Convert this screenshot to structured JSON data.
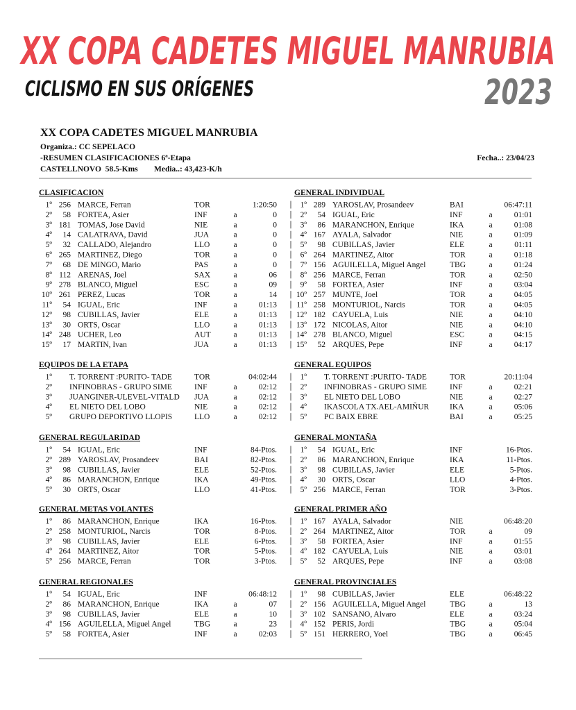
{
  "banner": {
    "title": "XX COPA CADETES MIGUEL MANRUBIA",
    "subtitle": "CICLISMO EN SUS ORÍGENES",
    "year": "2023"
  },
  "header": {
    "title": "XX COPA CADETES MIGUEL MANRUBIA",
    "organizer": "Organiza.: CC SEPELACO",
    "summary": "-RESUMEN CLASIFICACIONES 6ª-Etapa",
    "date": "Fecha..: 23/04/23",
    "stage": "CASTELLNOVO  58.5-Kms",
    "speed": "Media..: 43,423-K/h"
  },
  "sections": [
    {
      "left": {
        "title": "CLASIFICACION",
        "rows": [
          {
            "p": "1º",
            "d": "256",
            "n": "MARCE, Ferran",
            "t": "TOR",
            "v": "1:20:50"
          },
          {
            "p": "2º",
            "d": "58",
            "n": "FORTEA, Asier",
            "t": "INF",
            "a": "a",
            "v": "0"
          },
          {
            "p": "3º",
            "d": "181",
            "n": "TOMAS, Jose David",
            "t": "NIE",
            "a": "a",
            "v": "0"
          },
          {
            "p": "4º",
            "d": "14",
            "n": "CALATRAVA, David",
            "t": "JUA",
            "a": "a",
            "v": "0"
          },
          {
            "p": "5º",
            "d": "32",
            "n": "CALLADO, Alejandro",
            "t": "LLO",
            "a": "a",
            "v": "0"
          },
          {
            "p": "6º",
            "d": "265",
            "n": "MARTINEZ, Diego",
            "t": "TOR",
            "a": "a",
            "v": "0"
          },
          {
            "p": "7º",
            "d": "68",
            "n": "DE MINGO, Mario",
            "t": "PAS",
            "a": "a",
            "v": "0"
          },
          {
            "p": "8º",
            "d": "112",
            "n": "ARENAS, Joel",
            "t": "SAX",
            "a": "a",
            "v": "06"
          },
          {
            "p": "9º",
            "d": "278",
            "n": "BLANCO, Miguel",
            "t": "ESC",
            "a": "a",
            "v": "09"
          },
          {
            "p": "10º",
            "d": "261",
            "n": "PEREZ, Lucas",
            "t": "TOR",
            "a": "a",
            "v": "14"
          },
          {
            "p": "11º",
            "d": "54",
            "n": "IGUAL, Eric",
            "t": "INF",
            "a": "a",
            "v": "01:13"
          },
          {
            "p": "12º",
            "d": "98",
            "n": "CUBILLAS, Javier",
            "t": "ELE",
            "a": "a",
            "v": "01:13"
          },
          {
            "p": "13º",
            "d": "30",
            "n": "ORTS, Oscar",
            "t": "LLO",
            "a": "a",
            "v": "01:13"
          },
          {
            "p": "14º",
            "d": "248",
            "n": "UCHER, Leo",
            "t": "AUT",
            "a": "a",
            "v": "01:13"
          },
          {
            "p": "15º",
            "d": "17",
            "n": "MARTIN, Ivan",
            "t": "JUA",
            "a": "a",
            "v": "01:13"
          }
        ]
      },
      "right": {
        "title": "GENERAL INDIVIDUAL",
        "rows": [
          {
            "p": "1º",
            "d": "289",
            "n": "YAROSLAV, Prosandeev",
            "t": "BAI",
            "v": "06:47:11"
          },
          {
            "p": "2º",
            "d": "54",
            "n": "IGUAL, Eric",
            "t": "INF",
            "a": "a",
            "v": "01:01"
          },
          {
            "p": "3º",
            "d": "86",
            "n": "MARANCHON, Enrique",
            "t": "IKA",
            "a": "a",
            "v": "01:08"
          },
          {
            "p": "4º",
            "d": "167",
            "n": "AYALA, Salvador",
            "t": "NIE",
            "a": "a",
            "v": "01:09"
          },
          {
            "p": "5º",
            "d": "98",
            "n": "CUBILLAS, Javier",
            "t": "ELE",
            "a": "a",
            "v": "01:11"
          },
          {
            "p": "6º",
            "d": "264",
            "n": "MARTINEZ, Aitor",
            "t": "TOR",
            "a": "a",
            "v": "01:18"
          },
          {
            "p": "7º",
            "d": "156",
            "n": "AGUILELLA, Miguel Angel",
            "t": "TBG",
            "a": "a",
            "v": "01:24"
          },
          {
            "p": "8º",
            "d": "256",
            "n": "MARCE, Ferran",
            "t": "TOR",
            "a": "a",
            "v": "02:50"
          },
          {
            "p": "9º",
            "d": "58",
            "n": "FORTEA, Asier",
            "t": "INF",
            "a": "a",
            "v": "03:04"
          },
          {
            "p": "10º",
            "d": "257",
            "n": "MUNTE, Joel",
            "t": "TOR",
            "a": "a",
            "v": "04:05"
          },
          {
            "p": "11º",
            "d": "258",
            "n": "MONTURIOL, Narcis",
            "t": "TOR",
            "a": "a",
            "v": "04:05"
          },
          {
            "p": "12º",
            "d": "182",
            "n": "CAYUELA, Luis",
            "t": "NIE",
            "a": "a",
            "v": "04:10"
          },
          {
            "p": "13º",
            "d": "172",
            "n": "NICOLAS, Aitor",
            "t": "NIE",
            "a": "a",
            "v": "04:10"
          },
          {
            "p": "14º",
            "d": "278",
            "n": "BLANCO, Miguel",
            "t": "ESC",
            "a": "a",
            "v": "04:15"
          },
          {
            "p": "15º",
            "d": "52",
            "n": "ARQUES, Pepe",
            "t": "INF",
            "a": "a",
            "v": "04:17"
          }
        ]
      }
    },
    {
      "left": {
        "title": "EQUIPOS DE LA ETAPA",
        "rows": [
          {
            "p": "1º",
            "n": "T. TORRENT :PURITO- TADE",
            "t": "TOR",
            "v": "04:02:44"
          },
          {
            "p": "2º",
            "n": "INFINOBRAS - GRUPO SIME",
            "t": "INF",
            "a": "a",
            "v": "02:12"
          },
          {
            "p": "3º",
            "n": "JUANGINER-ULEVEL-VITALD",
            "t": "JUA",
            "a": "a",
            "v": "02:12"
          },
          {
            "p": "4º",
            "n": "EL NIETO DEL LOBO",
            "t": "NIE",
            "a": "a",
            "v": "02:12"
          },
          {
            "p": "5º",
            "n": "GRUPO DEPORTIVO LLOPIS",
            "t": "LLO",
            "a": "a",
            "v": "02:12"
          }
        ]
      },
      "right": {
        "title": "GENERAL EQUIPOS",
        "rows": [
          {
            "p": "1º",
            "n": "T. TORRENT :PURITO- TADE",
            "t": "TOR",
            "v": "20:11:04"
          },
          {
            "p": "2º",
            "n": "INFINOBRAS - GRUPO SIME",
            "t": "INF",
            "a": "a",
            "v": "02:21"
          },
          {
            "p": "3º",
            "n": "EL NIETO DEL LOBO",
            "t": "NIE",
            "a": "a",
            "v": "02:27"
          },
          {
            "p": "4º",
            "n": "IKASCOLA TX.AEL-AMIÑUR",
            "t": "IKA",
            "a": "a",
            "v": "05:06"
          },
          {
            "p": "5º",
            "n": "PC BAIX EBRE",
            "t": "BAI",
            "a": "a",
            "v": "05:25"
          }
        ]
      }
    },
    {
      "left": {
        "title": "GENERAL REGULARIDAD",
        "rows": [
          {
            "p": "1º",
            "d": "54",
            "n": "IGUAL, Eric",
            "t": "INF",
            "v": "84-Ptos."
          },
          {
            "p": "2º",
            "d": "289",
            "n": "YAROSLAV, Prosandeev",
            "t": "BAI",
            "v": "82-Ptos."
          },
          {
            "p": "3º",
            "d": "98",
            "n": "CUBILLAS, Javier",
            "t": "ELE",
            "v": "52-Ptos."
          },
          {
            "p": "4º",
            "d": "86",
            "n": "MARANCHON, Enrique",
            "t": "IKA",
            "v": "49-Ptos."
          },
          {
            "p": "5º",
            "d": "30",
            "n": "ORTS, Oscar",
            "t": "LLO",
            "v": "41-Ptos."
          }
        ]
      },
      "right": {
        "title": "GENERAL MONTAÑA",
        "rows": [
          {
            "p": "1º",
            "d": "54",
            "n": "IGUAL, Eric",
            "t": "INF",
            "v": "16-Ptos."
          },
          {
            "p": "2º",
            "d": "86",
            "n": "MARANCHON, Enrique",
            "t": "IKA",
            "v": "11-Ptos."
          },
          {
            "p": "3º",
            "d": "98",
            "n": "CUBILLAS, Javier",
            "t": "ELE",
            "v": "5-Ptos."
          },
          {
            "p": "4º",
            "d": "30",
            "n": "ORTS, Oscar",
            "t": "LLO",
            "v": "4-Ptos."
          },
          {
            "p": "5º",
            "d": "256",
            "n": "MARCE, Ferran",
            "t": "TOR",
            "v": "3-Ptos."
          }
        ]
      }
    },
    {
      "left": {
        "title": "GENERAL METAS VOLANTES",
        "rows": [
          {
            "p": "1º",
            "d": "86",
            "n": "MARANCHON, Enrique",
            "t": "IKA",
            "v": "16-Ptos."
          },
          {
            "p": "2º",
            "d": "258",
            "n": "MONTURIOL, Narcis",
            "t": "TOR",
            "v": "8-Ptos."
          },
          {
            "p": "3º",
            "d": "98",
            "n": "CUBILLAS, Javier",
            "t": "ELE",
            "v": "6-Ptos."
          },
          {
            "p": "4º",
            "d": "264",
            "n": "MARTINEZ, Aitor",
            "t": "TOR",
            "v": "5-Ptos."
          },
          {
            "p": "5º",
            "d": "256",
            "n": "MARCE, Ferran",
            "t": "TOR",
            "v": "3-Ptos."
          }
        ]
      },
      "right": {
        "title": "GENERAL PRIMER AÑO",
        "rows": [
          {
            "p": "1º",
            "d": "167",
            "n": "AYALA, Salvador",
            "t": "NIE",
            "v": "06:48:20"
          },
          {
            "p": "2º",
            "d": "264",
            "n": "MARTINEZ, Aitor",
            "t": "TOR",
            "a": "a",
            "v": "09"
          },
          {
            "p": "3º",
            "d": "58",
            "n": "FORTEA, Asier",
            "t": "INF",
            "a": "a",
            "v": "01:55"
          },
          {
            "p": "4º",
            "d": "182",
            "n": "CAYUELA, Luis",
            "t": "NIE",
            "a": "a",
            "v": "03:01"
          },
          {
            "p": "5º",
            "d": "52",
            "n": "ARQUES, Pepe",
            "t": "INF",
            "a": "a",
            "v": "03:08"
          }
        ]
      }
    },
    {
      "left": {
        "title": "GENERAL REGIONALES",
        "rows": [
          {
            "p": "1º",
            "d": "54",
            "n": "IGUAL, Eric",
            "t": "INF",
            "v": "06:48:12"
          },
          {
            "p": "2º",
            "d": "86",
            "n": "MARANCHON, Enrique",
            "t": "IKA",
            "a": "a",
            "v": "07"
          },
          {
            "p": "3º",
            "d": "98",
            "n": "CUBILLAS, Javier",
            "t": "ELE",
            "a": "a",
            "v": "10"
          },
          {
            "p": "4º",
            "d": "156",
            "n": "AGUILELLA, Miguel Angel",
            "t": "TBG",
            "a": "a",
            "v": "23"
          },
          {
            "p": "5º",
            "d": "58",
            "n": "FORTEA, Asier",
            "t": "INF",
            "a": "a",
            "v": "02:03"
          }
        ]
      },
      "right": {
        "title": "GENERAL PROVINCIALES",
        "rows": [
          {
            "p": "1º",
            "d": "98",
            "n": "CUBILLAS, Javier",
            "t": "ELE",
            "v": "06:48:22"
          },
          {
            "p": "2º",
            "d": "156",
            "n": "AGUILELLA, Miguel Angel",
            "t": "TBG",
            "a": "a",
            "v": "13"
          },
          {
            "p": "3º",
            "d": "102",
            "n": "SANSANO, Alvaro",
            "t": "ELE",
            "a": "a",
            "v": "03:24"
          },
          {
            "p": "4º",
            "d": "152",
            "n": "PERIS, Jordi",
            "t": "TBG",
            "a": "a",
            "v": "05:04"
          },
          {
            "p": "5º",
            "d": "151",
            "n": "HERRERO, Yoel",
            "t": "TBG",
            "a": "a",
            "v": "06:45"
          }
        ]
      }
    }
  ]
}
